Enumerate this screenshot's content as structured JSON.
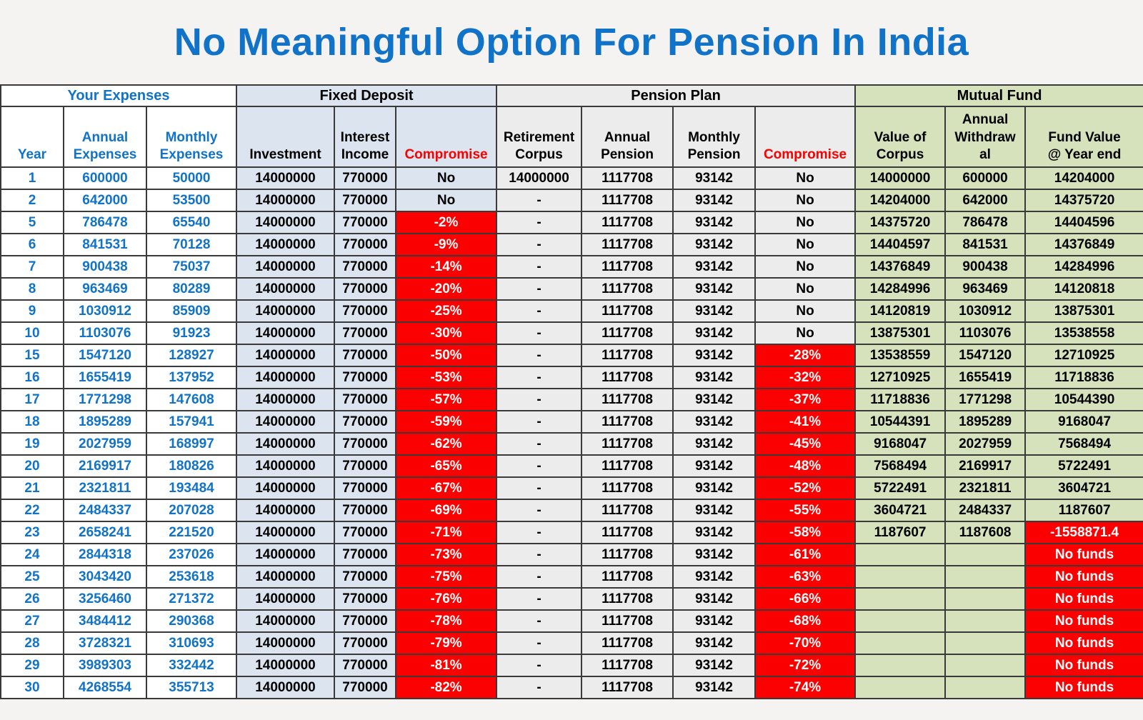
{
  "title": "No Meaningful Option For Pension In India",
  "colors": {
    "page_background": "#F4F3F1",
    "title_blue": "#1173C8",
    "expenses_blue": "#1173C8",
    "fd_fill": "#DCE4F0",
    "pp_fill": "#ECECEC",
    "mf_fill": "#D6E2BB",
    "alert_red": "#FB0000",
    "alert_text": "#FFFFFF"
  },
  "chart_data": {
    "type": "table",
    "title": "No Meaningful Option For Pension In India",
    "column_groups": [
      {
        "label": "Your Expenses",
        "span": 3
      },
      {
        "label": "Fixed Deposit",
        "span": 3
      },
      {
        "label": "Pension Plan",
        "span": 4
      },
      {
        "label": "Mutual Fund",
        "span": 3
      }
    ],
    "columns": [
      {
        "key": "year",
        "label": "Year"
      },
      {
        "key": "annual_expenses",
        "label": "Annual\nExpenses"
      },
      {
        "key": "monthly_expenses",
        "label": "Monthly\nExpenses"
      },
      {
        "key": "fd_investment",
        "label": "Investment"
      },
      {
        "key": "fd_interest_income",
        "label": "Interest\nIncome"
      },
      {
        "key": "fd_compromise",
        "label": "Compromise"
      },
      {
        "key": "pp_retirement_corpus",
        "label": "Retirement\nCorpus"
      },
      {
        "key": "pp_annual_pension",
        "label": "Annual\nPension"
      },
      {
        "key": "pp_monthly_pension",
        "label": "Monthly\nPension"
      },
      {
        "key": "pp_compromise",
        "label": "Compromise"
      },
      {
        "key": "mf_value_of_corpus",
        "label": "Value of\nCorpus"
      },
      {
        "key": "mf_annual_withdrawal",
        "label": "Annual\nWithdraw\nal"
      },
      {
        "key": "mf_fund_value",
        "label": "Fund Value\n@ Year end"
      }
    ],
    "rows": [
      {
        "year": 1,
        "annual_expenses": 600000,
        "monthly_expenses": 50000,
        "fd_investment": 14000000,
        "fd_interest_income": 770000,
        "fd_compromise": "No",
        "pp_retirement_corpus": "14000000",
        "pp_annual_pension": 1117708,
        "pp_monthly_pension": 93142,
        "pp_compromise": "No",
        "mf_value_of_corpus": "14000000",
        "mf_annual_withdrawal": "600000",
        "mf_fund_value": "14204000"
      },
      {
        "year": 2,
        "annual_expenses": 642000,
        "monthly_expenses": 53500,
        "fd_investment": 14000000,
        "fd_interest_income": 770000,
        "fd_compromise": "No",
        "pp_retirement_corpus": "-",
        "pp_annual_pension": 1117708,
        "pp_monthly_pension": 93142,
        "pp_compromise": "No",
        "mf_value_of_corpus": "14204000",
        "mf_annual_withdrawal": "642000",
        "mf_fund_value": "14375720"
      },
      {
        "year": 5,
        "annual_expenses": 786478,
        "monthly_expenses": 65540,
        "fd_investment": 14000000,
        "fd_interest_income": 770000,
        "fd_compromise": "-2%",
        "pp_retirement_corpus": "-",
        "pp_annual_pension": 1117708,
        "pp_monthly_pension": 93142,
        "pp_compromise": "No",
        "mf_value_of_corpus": "14375720",
        "mf_annual_withdrawal": "786478",
        "mf_fund_value": "14404596"
      },
      {
        "year": 6,
        "annual_expenses": 841531,
        "monthly_expenses": 70128,
        "fd_investment": 14000000,
        "fd_interest_income": 770000,
        "fd_compromise": "-9%",
        "pp_retirement_corpus": "-",
        "pp_annual_pension": 1117708,
        "pp_monthly_pension": 93142,
        "pp_compromise": "No",
        "mf_value_of_corpus": "14404597",
        "mf_annual_withdrawal": "841531",
        "mf_fund_value": "14376849"
      },
      {
        "year": 7,
        "annual_expenses": 900438,
        "monthly_expenses": 75037,
        "fd_investment": 14000000,
        "fd_interest_income": 770000,
        "fd_compromise": "-14%",
        "pp_retirement_corpus": "-",
        "pp_annual_pension": 1117708,
        "pp_monthly_pension": 93142,
        "pp_compromise": "No",
        "mf_value_of_corpus": "14376849",
        "mf_annual_withdrawal": "900438",
        "mf_fund_value": "14284996"
      },
      {
        "year": 8,
        "annual_expenses": 963469,
        "monthly_expenses": 80289,
        "fd_investment": 14000000,
        "fd_interest_income": 770000,
        "fd_compromise": "-20%",
        "pp_retirement_corpus": "-",
        "pp_annual_pension": 1117708,
        "pp_monthly_pension": 93142,
        "pp_compromise": "No",
        "mf_value_of_corpus": "14284996",
        "mf_annual_withdrawal": "963469",
        "mf_fund_value": "14120818"
      },
      {
        "year": 9,
        "annual_expenses": 1030912,
        "monthly_expenses": 85909,
        "fd_investment": 14000000,
        "fd_interest_income": 770000,
        "fd_compromise": "-25%",
        "pp_retirement_corpus": "-",
        "pp_annual_pension": 1117708,
        "pp_monthly_pension": 93142,
        "pp_compromise": "No",
        "mf_value_of_corpus": "14120819",
        "mf_annual_withdrawal": "1030912",
        "mf_fund_value": "13875301"
      },
      {
        "year": 10,
        "annual_expenses": 1103076,
        "monthly_expenses": 91923,
        "fd_investment": 14000000,
        "fd_interest_income": 770000,
        "fd_compromise": "-30%",
        "pp_retirement_corpus": "-",
        "pp_annual_pension": 1117708,
        "pp_monthly_pension": 93142,
        "pp_compromise": "No",
        "mf_value_of_corpus": "13875301",
        "mf_annual_withdrawal": "1103076",
        "mf_fund_value": "13538558"
      },
      {
        "year": 15,
        "annual_expenses": 1547120,
        "monthly_expenses": 128927,
        "fd_investment": 14000000,
        "fd_interest_income": 770000,
        "fd_compromise": "-50%",
        "pp_retirement_corpus": "-",
        "pp_annual_pension": 1117708,
        "pp_monthly_pension": 93142,
        "pp_compromise": "-28%",
        "mf_value_of_corpus": "13538559",
        "mf_annual_withdrawal": "1547120",
        "mf_fund_value": "12710925"
      },
      {
        "year": 16,
        "annual_expenses": 1655419,
        "monthly_expenses": 137952,
        "fd_investment": 14000000,
        "fd_interest_income": 770000,
        "fd_compromise": "-53%",
        "pp_retirement_corpus": "-",
        "pp_annual_pension": 1117708,
        "pp_monthly_pension": 93142,
        "pp_compromise": "-32%",
        "mf_value_of_corpus": "12710925",
        "mf_annual_withdrawal": "1655419",
        "mf_fund_value": "11718836"
      },
      {
        "year": 17,
        "annual_expenses": 1771298,
        "monthly_expenses": 147608,
        "fd_investment": 14000000,
        "fd_interest_income": 770000,
        "fd_compromise": "-57%",
        "pp_retirement_corpus": "-",
        "pp_annual_pension": 1117708,
        "pp_monthly_pension": 93142,
        "pp_compromise": "-37%",
        "mf_value_of_corpus": "11718836",
        "mf_annual_withdrawal": "1771298",
        "mf_fund_value": "10544390"
      },
      {
        "year": 18,
        "annual_expenses": 1895289,
        "monthly_expenses": 157941,
        "fd_investment": 14000000,
        "fd_interest_income": 770000,
        "fd_compromise": "-59%",
        "pp_retirement_corpus": "-",
        "pp_annual_pension": 1117708,
        "pp_monthly_pension": 93142,
        "pp_compromise": "-41%",
        "mf_value_of_corpus": "10544391",
        "mf_annual_withdrawal": "1895289",
        "mf_fund_value": "9168047"
      },
      {
        "year": 19,
        "annual_expenses": 2027959,
        "monthly_expenses": 168997,
        "fd_investment": 14000000,
        "fd_interest_income": 770000,
        "fd_compromise": "-62%",
        "pp_retirement_corpus": "-",
        "pp_annual_pension": 1117708,
        "pp_monthly_pension": 93142,
        "pp_compromise": "-45%",
        "mf_value_of_corpus": "9168047",
        "mf_annual_withdrawal": "2027959",
        "mf_fund_value": "7568494"
      },
      {
        "year": 20,
        "annual_expenses": 2169917,
        "monthly_expenses": 180826,
        "fd_investment": 14000000,
        "fd_interest_income": 770000,
        "fd_compromise": "-65%",
        "pp_retirement_corpus": "-",
        "pp_annual_pension": 1117708,
        "pp_monthly_pension": 93142,
        "pp_compromise": "-48%",
        "mf_value_of_corpus": "7568494",
        "mf_annual_withdrawal": "2169917",
        "mf_fund_value": "5722491"
      },
      {
        "year": 21,
        "annual_expenses": 2321811,
        "monthly_expenses": 193484,
        "fd_investment": 14000000,
        "fd_interest_income": 770000,
        "fd_compromise": "-67%",
        "pp_retirement_corpus": "-",
        "pp_annual_pension": 1117708,
        "pp_monthly_pension": 93142,
        "pp_compromise": "-52%",
        "mf_value_of_corpus": "5722491",
        "mf_annual_withdrawal": "2321811",
        "mf_fund_value": "3604721"
      },
      {
        "year": 22,
        "annual_expenses": 2484337,
        "monthly_expenses": 207028,
        "fd_investment": 14000000,
        "fd_interest_income": 770000,
        "fd_compromise": "-69%",
        "pp_retirement_corpus": "-",
        "pp_annual_pension": 1117708,
        "pp_monthly_pension": 93142,
        "pp_compromise": "-55%",
        "mf_value_of_corpus": "3604721",
        "mf_annual_withdrawal": "2484337",
        "mf_fund_value": "1187607"
      },
      {
        "year": 23,
        "annual_expenses": 2658241,
        "monthly_expenses": 221520,
        "fd_investment": 14000000,
        "fd_interest_income": 770000,
        "fd_compromise": "-71%",
        "pp_retirement_corpus": "-",
        "pp_annual_pension": 1117708,
        "pp_monthly_pension": 93142,
        "pp_compromise": "-58%",
        "mf_value_of_corpus": "1187607",
        "mf_annual_withdrawal": "1187608",
        "mf_fund_value": "-1558871.4"
      },
      {
        "year": 24,
        "annual_expenses": 2844318,
        "monthly_expenses": 237026,
        "fd_investment": 14000000,
        "fd_interest_income": 770000,
        "fd_compromise": "-73%",
        "pp_retirement_corpus": "-",
        "pp_annual_pension": 1117708,
        "pp_monthly_pension": 93142,
        "pp_compromise": "-61%",
        "mf_value_of_corpus": "",
        "mf_annual_withdrawal": "",
        "mf_fund_value": "No funds"
      },
      {
        "year": 25,
        "annual_expenses": 3043420,
        "monthly_expenses": 253618,
        "fd_investment": 14000000,
        "fd_interest_income": 770000,
        "fd_compromise": "-75%",
        "pp_retirement_corpus": "-",
        "pp_annual_pension": 1117708,
        "pp_monthly_pension": 93142,
        "pp_compromise": "-63%",
        "mf_value_of_corpus": "",
        "mf_annual_withdrawal": "",
        "mf_fund_value": "No funds"
      },
      {
        "year": 26,
        "annual_expenses": 3256460,
        "monthly_expenses": 271372,
        "fd_investment": 14000000,
        "fd_interest_income": 770000,
        "fd_compromise": "-76%",
        "pp_retirement_corpus": "-",
        "pp_annual_pension": 1117708,
        "pp_monthly_pension": 93142,
        "pp_compromise": "-66%",
        "mf_value_of_corpus": "",
        "mf_annual_withdrawal": "",
        "mf_fund_value": "No funds"
      },
      {
        "year": 27,
        "annual_expenses": 3484412,
        "monthly_expenses": 290368,
        "fd_investment": 14000000,
        "fd_interest_income": 770000,
        "fd_compromise": "-78%",
        "pp_retirement_corpus": "-",
        "pp_annual_pension": 1117708,
        "pp_monthly_pension": 93142,
        "pp_compromise": "-68%",
        "mf_value_of_corpus": "",
        "mf_annual_withdrawal": "",
        "mf_fund_value": "No funds"
      },
      {
        "year": 28,
        "annual_expenses": 3728321,
        "monthly_expenses": 310693,
        "fd_investment": 14000000,
        "fd_interest_income": 770000,
        "fd_compromise": "-79%",
        "pp_retirement_corpus": "-",
        "pp_annual_pension": 1117708,
        "pp_monthly_pension": 93142,
        "pp_compromise": "-70%",
        "mf_value_of_corpus": "",
        "mf_annual_withdrawal": "",
        "mf_fund_value": "No funds"
      },
      {
        "year": 29,
        "annual_expenses": 3989303,
        "monthly_expenses": 332442,
        "fd_investment": 14000000,
        "fd_interest_income": 770000,
        "fd_compromise": "-81%",
        "pp_retirement_corpus": "-",
        "pp_annual_pension": 1117708,
        "pp_monthly_pension": 93142,
        "pp_compromise": "-72%",
        "mf_value_of_corpus": "",
        "mf_annual_withdrawal": "",
        "mf_fund_value": "No funds"
      },
      {
        "year": 30,
        "annual_expenses": 4268554,
        "monthly_expenses": 355713,
        "fd_investment": 14000000,
        "fd_interest_income": 770000,
        "fd_compromise": "-82%",
        "pp_retirement_corpus": "-",
        "pp_annual_pension": 1117708,
        "pp_monthly_pension": 93142,
        "pp_compromise": "-74%",
        "mf_value_of_corpus": "",
        "mf_annual_withdrawal": "",
        "mf_fund_value": "No funds"
      }
    ]
  }
}
